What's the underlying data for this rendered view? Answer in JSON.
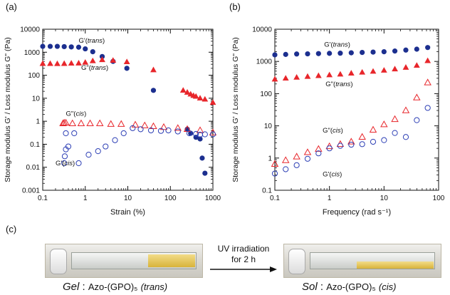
{
  "panel_labels": {
    "a": "(a)",
    "b": "(b)",
    "c": "(c)"
  },
  "chart_data": [
    {
      "type": "scatter",
      "panel": "(a)",
      "xlabel": "Strain (%)",
      "ylabel": "Storage modulus G' / Loss modulus G\" (Pa)",
      "xscale": "log",
      "yscale": "log",
      "xlim": [
        0.1,
        1000
      ],
      "ylim": [
        0.001,
        10000
      ],
      "xticks": [
        "0.1",
        "1",
        "10",
        "100",
        "1000"
      ],
      "yticks": [
        "0.001",
        "0.01",
        "0.1",
        "1",
        "10",
        "100",
        "1000",
        "10000"
      ],
      "series": [
        {
          "name": "G'(trans)",
          "marker": "filled-circle",
          "color": "#1c2f8f",
          "points": [
            [
              0.1,
              1800
            ],
            [
              0.15,
              1800
            ],
            [
              0.22,
              1800
            ],
            [
              0.32,
              1750
            ],
            [
              0.47,
              1700
            ],
            [
              0.7,
              1650
            ],
            [
              1.0,
              1400
            ],
            [
              1.5,
              1050
            ],
            [
              2.5,
              650
            ],
            [
              4.5,
              400
            ],
            [
              9.5,
              200
            ],
            [
              40,
              22
            ],
            [
              250,
              0.45
            ],
            [
              300,
              0.3
            ],
            [
              400,
              0.2
            ],
            [
              500,
              0.17
            ],
            [
              560,
              0.025
            ],
            [
              650,
              0.0055
            ]
          ]
        },
        {
          "name": "G\"(trans)",
          "marker": "filled-triangle",
          "color": "#e8262b",
          "points": [
            [
              0.1,
              320
            ],
            [
              0.15,
              320
            ],
            [
              0.22,
              315
            ],
            [
              0.32,
              320
            ],
            [
              0.47,
              330
            ],
            [
              0.7,
              335
            ],
            [
              1.0,
              360
            ],
            [
              1.5,
              420
            ],
            [
              2.5,
              470
            ],
            [
              4.5,
              440
            ],
            [
              9.5,
              380
            ],
            [
              40,
              170
            ],
            [
              200,
              22
            ],
            [
              250,
              18
            ],
            [
              300,
              15
            ],
            [
              350,
              13
            ],
            [
              400,
              12
            ],
            [
              500,
              10
            ],
            [
              650,
              9
            ],
            [
              1000,
              6.5
            ]
          ]
        },
        {
          "name": "G\"(cis)",
          "marker": "open-triangle",
          "color": "#e8262b",
          "points": [
            [
              0.3,
              0.8
            ],
            [
              0.32,
              0.85
            ],
            [
              0.35,
              0.85
            ],
            [
              0.5,
              0.8
            ],
            [
              0.8,
              0.8
            ],
            [
              1.3,
              0.8
            ],
            [
              2.2,
              0.8
            ],
            [
              4,
              0.75
            ],
            [
              7,
              0.75
            ],
            [
              15,
              0.7
            ],
            [
              25,
              0.65
            ],
            [
              40,
              0.6
            ],
            [
              70,
              0.55
            ],
            [
              150,
              0.5
            ],
            [
              250,
              0.45
            ],
            [
              500,
              0.4
            ],
            [
              1000,
              0.32
            ]
          ]
        },
        {
          "name": "G'(cis)",
          "marker": "open-circle",
          "color": "#2d3fb5",
          "points": [
            [
              0.32,
              0.015
            ],
            [
              0.33,
              0.03
            ],
            [
              0.35,
              0.06
            ],
            [
              0.4,
              0.08
            ],
            [
              0.35,
              0.3
            ],
            [
              0.7,
              0.015
            ],
            [
              0.55,
              0.3
            ],
            [
              1.2,
              0.035
            ],
            [
              2.0,
              0.05
            ],
            [
              3.0,
              0.08
            ],
            [
              5,
              0.15
            ],
            [
              8,
              0.3
            ],
            [
              13,
              0.5
            ],
            [
              20,
              0.45
            ],
            [
              35,
              0.4
            ],
            [
              60,
              0.38
            ],
            [
              90,
              0.4
            ],
            [
              150,
              0.36
            ],
            [
              280,
              0.3
            ],
            [
              400,
              0.28
            ],
            [
              500,
              0.26
            ],
            [
              650,
              0.27
            ],
            [
              1000,
              0.27
            ]
          ]
        }
      ],
      "annotations": [
        "G'(trans)",
        "G\"(trans)",
        "G\"(cis)",
        "G'(cis)"
      ]
    },
    {
      "type": "scatter",
      "panel": "(b)",
      "xlabel": "Frequency (rad s⁻¹)",
      "ylabel": "Storage modulus G' / Loss modulus G\" (Pa)",
      "xscale": "log",
      "yscale": "log",
      "xlim": [
        0.1,
        100
      ],
      "ylim": [
        0.1,
        10000
      ],
      "xticks": [
        "0.1",
        "1",
        "10",
        "100"
      ],
      "yticks": [
        "0.1",
        "1",
        "10",
        "100",
        "1000",
        "10000"
      ],
      "series": [
        {
          "name": "G'(trans)",
          "marker": "filled-circle",
          "color": "#1c2f8f",
          "points": [
            [
              0.1,
              1600
            ],
            [
              0.158,
              1650
            ],
            [
              0.251,
              1700
            ],
            [
              0.398,
              1720
            ],
            [
              0.631,
              1750
            ],
            [
              1.0,
              1780
            ],
            [
              1.58,
              1800
            ],
            [
              2.51,
              1850
            ],
            [
              3.98,
              1900
            ],
            [
              6.31,
              1950
            ],
            [
              10,
              2000
            ],
            [
              15.8,
              2100
            ],
            [
              25.1,
              2250
            ],
            [
              39.8,
              2400
            ],
            [
              63.1,
              2700
            ]
          ]
        },
        {
          "name": "G\"(trans)",
          "marker": "filled-triangle",
          "color": "#e8262b",
          "points": [
            [
              0.1,
              280
            ],
            [
              0.158,
              300
            ],
            [
              0.251,
              320
            ],
            [
              0.398,
              340
            ],
            [
              0.631,
              360
            ],
            [
              1.0,
              380
            ],
            [
              1.58,
              400
            ],
            [
              2.51,
              430
            ],
            [
              3.98,
              460
            ],
            [
              6.31,
              490
            ],
            [
              10,
              530
            ],
            [
              15.8,
              580
            ],
            [
              25.1,
              650
            ],
            [
              39.8,
              750
            ],
            [
              63.1,
              1050
            ]
          ]
        },
        {
          "name": "G\"(cis)",
          "marker": "open-triangle",
          "color": "#e8262b",
          "points": [
            [
              0.1,
              0.65
            ],
            [
              0.158,
              0.85
            ],
            [
              0.251,
              1.1
            ],
            [
              0.398,
              1.5
            ],
            [
              0.631,
              1.9
            ],
            [
              1.0,
              2.3
            ],
            [
              1.58,
              2.7
            ],
            [
              2.51,
              3.2
            ],
            [
              3.98,
              4.5
            ],
            [
              6.31,
              7.5
            ],
            [
              10,
              11
            ],
            [
              15.8,
              16
            ],
            [
              25.1,
              30
            ],
            [
              39.8,
              75
            ],
            [
              63.1,
              220
            ]
          ]
        },
        {
          "name": "G'(cis)",
          "marker": "open-circle",
          "color": "#2d3fb5",
          "points": [
            [
              0.1,
              0.33
            ],
            [
              0.158,
              0.45
            ],
            [
              0.251,
              0.6
            ],
            [
              0.398,
              0.95
            ],
            [
              0.631,
              1.4
            ],
            [
              1.0,
              2.0
            ],
            [
              1.58,
              2.4
            ],
            [
              2.51,
              2.6
            ],
            [
              3.98,
              2.7
            ],
            [
              6.31,
              3.2
            ],
            [
              10,
              3.6
            ],
            [
              15.8,
              6
            ],
            [
              25.1,
              4.5
            ],
            [
              39.8,
              15
            ],
            [
              63.1,
              36
            ]
          ]
        }
      ],
      "annotations": [
        "G'(trans)",
        "G\"(trans)",
        "G\"(cis)",
        "G'(cis)"
      ]
    }
  ],
  "photo": {
    "arrow_text_line1": "UV irradiation",
    "arrow_text_line2": "for 2 h",
    "left_caption_state": "Gel",
    "left_caption_compound": "Azo-(GPO)₅",
    "left_caption_form": "(trans)",
    "right_caption_state": "Sol",
    "right_caption_compound": "Azo-(GPO)₅",
    "right_caption_form": "(cis)",
    "separator": ":",
    "colors": {
      "gel": "#e4c555",
      "tube": "#dcdad3"
    }
  }
}
